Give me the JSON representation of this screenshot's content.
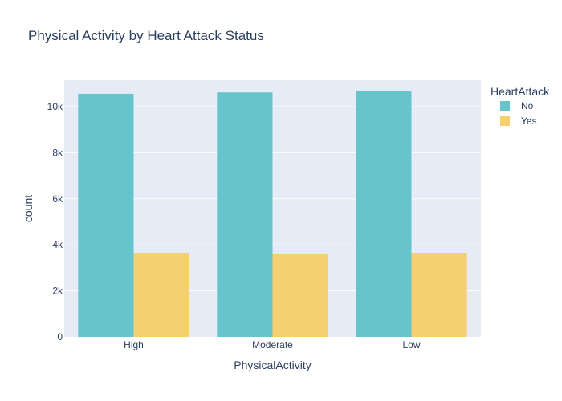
{
  "chart_data": {
    "type": "bar",
    "title": "Physical Activity by Heart Attack Status",
    "xlabel": "PhysicalActivity",
    "ylabel": "count",
    "categories": [
      "High",
      "Moderate",
      "Low"
    ],
    "series": [
      {
        "name": "No",
        "color": "#66c5cc",
        "values": [
          10560,
          10620,
          10680
        ]
      },
      {
        "name": "Yes",
        "color": "#f6cf71",
        "values": [
          3620,
          3590,
          3650
        ]
      }
    ],
    "ylim": [
      0,
      11150
    ],
    "yticks": [
      0,
      2000,
      4000,
      6000,
      8000,
      10000
    ],
    "ytick_labels": [
      "0",
      "2k",
      "4k",
      "6k",
      "8k",
      "10k"
    ],
    "legend": {
      "title": "HeartAttack",
      "position": "top-right"
    },
    "grid": true,
    "plot_bgcolor": "#e5ecf6"
  }
}
